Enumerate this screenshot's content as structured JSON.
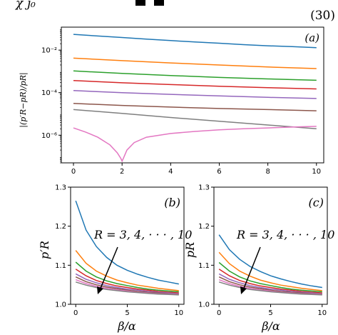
{
  "header": {
    "fragment": "χ ȷ₀",
    "equation_number": "(30)"
  },
  "chart_data": [
    {
      "panel": "(a)",
      "type": "line",
      "ylog": true,
      "xlim": [
        -0.5,
        10.3
      ],
      "ylim": [
        5e-08,
        0.12
      ],
      "xticks": [
        0,
        2,
        4,
        6,
        8,
        10
      ],
      "yticks": [
        {
          "value": 0.01,
          "label": "10⁻²"
        },
        {
          "value": 0.0001,
          "label": "10⁻⁴"
        },
        {
          "value": 1e-06,
          "label": "10⁻⁶"
        }
      ],
      "ylabel": "|(p′R−pR)/pR|",
      "series": [
        {
          "color": "#1f77b4",
          "x": [
            0,
            1,
            2,
            3,
            4,
            5,
            6,
            7,
            8,
            9,
            10
          ],
          "y": [
            0.055,
            0.046,
            0.039,
            0.033,
            0.028,
            0.024,
            0.021,
            0.018,
            0.016,
            0.0145,
            0.013
          ]
        },
        {
          "color": "#ff7f0e",
          "x": [
            0,
            2,
            4,
            6,
            8,
            10
          ],
          "y": [
            0.0042,
            0.0032,
            0.0025,
            0.002,
            0.0016,
            0.00135
          ]
        },
        {
          "color": "#2ca02c",
          "x": [
            0,
            2,
            4,
            6,
            8,
            10
          ],
          "y": [
            0.00105,
            0.0008,
            0.00064,
            0.00052,
            0.00044,
            0.00038
          ]
        },
        {
          "color": "#d62728",
          "x": [
            0,
            2,
            4,
            6,
            8,
            10
          ],
          "y": [
            0.00037,
            0.00029,
            0.00024,
            0.0002,
            0.000172,
            0.00015
          ]
        },
        {
          "color": "#9467bd",
          "x": [
            0,
            2,
            4,
            6,
            8,
            10
          ],
          "y": [
            0.000125,
            0.0001,
            8.3e-05,
            7e-05,
            6e-05,
            5.3e-05
          ]
        },
        {
          "color": "#8c564b",
          "x": [
            0,
            2,
            4,
            6,
            8,
            10
          ],
          "y": [
            3.1e-05,
            2.5e-05,
            2.1e-05,
            1.8e-05,
            1.6e-05,
            1.4e-05
          ]
        },
        {
          "color": "#7f7f7f",
          "x": [
            0,
            2,
            4,
            6,
            8,
            10
          ],
          "y": [
            1.6e-05,
            1.05e-05,
            6.8e-06,
            4.5e-06,
            3e-06,
            2e-06
          ]
        },
        {
          "color": "#e377c2",
          "x": [
            0,
            0.5,
            1,
            1.5,
            1.8,
            1.95,
            2.0,
            2.05,
            2.2,
            2.5,
            3,
            4,
            5,
            6,
            7,
            8,
            9,
            10
          ],
          "y": [
            2.2e-06,
            1.4e-06,
            8e-07,
            3.5e-07,
            1.5e-07,
            8e-08,
            6e-08,
            8e-08,
            2e-07,
            4.5e-07,
            8e-07,
            1.2e-06,
            1.5e-06,
            1.8e-06,
            2e-06,
            2.2e-06,
            2.4e-06,
            2.6e-06
          ]
        }
      ]
    },
    {
      "panel": "(b)",
      "type": "line",
      "xlim": [
        -0.5,
        10.5
      ],
      "ylim": [
        1.0,
        1.3
      ],
      "xticks": [
        0,
        5,
        10
      ],
      "yticks": [
        1.0,
        1.1,
        1.2,
        1.3
      ],
      "xlabel": "β/α",
      "ylabel": "p′R",
      "annotation": "R = 3, 4, · · · , 10",
      "series": [
        {
          "color": "#1f77b4",
          "x": [
            0,
            1,
            2,
            3,
            4,
            5,
            6,
            7,
            8,
            9,
            10
          ],
          "y": [
            1.265,
            1.19,
            1.148,
            1.12,
            1.1,
            1.087,
            1.077,
            1.069,
            1.062,
            1.057,
            1.052
          ]
        },
        {
          "color": "#ff7f0e",
          "x": [
            0,
            1,
            2,
            3,
            4,
            5,
            6,
            7,
            8,
            9,
            10
          ],
          "y": [
            1.138,
            1.105,
            1.085,
            1.072,
            1.062,
            1.055,
            1.049,
            1.045,
            1.041,
            1.038,
            1.035
          ]
        },
        {
          "color": "#2ca02c",
          "x": [
            0,
            1,
            2,
            3,
            4,
            5,
            6,
            7,
            8,
            9,
            10
          ],
          "y": [
            1.108,
            1.085,
            1.07,
            1.06,
            1.053,
            1.048,
            1.043,
            1.039,
            1.036,
            1.034,
            1.032
          ]
        },
        {
          "color": "#d62728",
          "x": [
            0,
            1,
            2,
            3,
            4,
            5,
            6,
            7,
            8,
            9,
            10
          ],
          "y": [
            1.09,
            1.073,
            1.061,
            1.053,
            1.047,
            1.043,
            1.039,
            1.036,
            1.033,
            1.031,
            1.029
          ]
        },
        {
          "color": "#9467bd",
          "x": [
            0,
            1,
            2,
            3,
            4,
            5,
            6,
            7,
            8,
            9,
            10
          ],
          "y": [
            1.078,
            1.064,
            1.055,
            1.048,
            1.043,
            1.039,
            1.036,
            1.033,
            1.031,
            1.029,
            1.027
          ]
        },
        {
          "color": "#8c564b",
          "x": [
            0,
            1,
            2,
            3,
            4,
            5,
            6,
            7,
            8,
            9,
            10
          ],
          "y": [
            1.07,
            1.058,
            1.05,
            1.044,
            1.04,
            1.036,
            1.033,
            1.031,
            1.029,
            1.027,
            1.026
          ]
        },
        {
          "color": "#e377c2",
          "x": [
            0,
            1,
            2,
            3,
            4,
            5,
            6,
            7,
            8,
            9,
            10
          ],
          "y": [
            1.063,
            1.053,
            1.046,
            1.041,
            1.037,
            1.034,
            1.031,
            1.029,
            1.027,
            1.026,
            1.025
          ]
        },
        {
          "color": "#7f7f7f",
          "x": [
            0,
            1,
            2,
            3,
            4,
            5,
            6,
            7,
            8,
            9,
            10
          ],
          "y": [
            1.057,
            1.049,
            1.043,
            1.038,
            1.035,
            1.032,
            1.03,
            1.028,
            1.026,
            1.025,
            1.024
          ]
        }
      ]
    },
    {
      "panel": "(c)",
      "type": "line",
      "xlim": [
        -0.5,
        10.5
      ],
      "ylim": [
        1.0,
        1.3
      ],
      "xticks": [
        0,
        5,
        10
      ],
      "yticks": [
        1.0,
        1.1,
        1.2,
        1.3
      ],
      "xlabel": "β/α",
      "ylabel": "pR",
      "annotation": "R = 3, 4, · · · , 10",
      "series": [
        {
          "color": "#1f77b4",
          "x": [
            0,
            1,
            2,
            3,
            4,
            5,
            6,
            7,
            8,
            9,
            10
          ],
          "y": [
            1.178,
            1.14,
            1.115,
            1.097,
            1.084,
            1.073,
            1.065,
            1.058,
            1.052,
            1.047,
            1.043
          ]
        },
        {
          "color": "#ff7f0e",
          "x": [
            0,
            1,
            2,
            3,
            4,
            5,
            6,
            7,
            8,
            9,
            10
          ],
          "y": [
            1.133,
            1.104,
            1.085,
            1.072,
            1.062,
            1.055,
            1.049,
            1.045,
            1.041,
            1.038,
            1.035
          ]
        },
        {
          "color": "#2ca02c",
          "x": [
            0,
            1,
            2,
            3,
            4,
            5,
            6,
            7,
            8,
            9,
            10
          ],
          "y": [
            1.107,
            1.085,
            1.07,
            1.06,
            1.053,
            1.048,
            1.043,
            1.039,
            1.036,
            1.034,
            1.032
          ]
        },
        {
          "color": "#d62728",
          "x": [
            0,
            1,
            2,
            3,
            4,
            5,
            6,
            7,
            8,
            9,
            10
          ],
          "y": [
            1.09,
            1.073,
            1.061,
            1.053,
            1.047,
            1.043,
            1.039,
            1.036,
            1.033,
            1.031,
            1.029
          ]
        },
        {
          "color": "#9467bd",
          "x": [
            0,
            1,
            2,
            3,
            4,
            5,
            6,
            7,
            8,
            9,
            10
          ],
          "y": [
            1.078,
            1.064,
            1.055,
            1.048,
            1.043,
            1.039,
            1.036,
            1.033,
            1.031,
            1.029,
            1.027
          ]
        },
        {
          "color": "#8c564b",
          "x": [
            0,
            1,
            2,
            3,
            4,
            5,
            6,
            7,
            8,
            9,
            10
          ],
          "y": [
            1.07,
            1.058,
            1.05,
            1.044,
            1.04,
            1.036,
            1.033,
            1.031,
            1.029,
            1.027,
            1.026
          ]
        },
        {
          "color": "#e377c2",
          "x": [
            0,
            1,
            2,
            3,
            4,
            5,
            6,
            7,
            8,
            9,
            10
          ],
          "y": [
            1.063,
            1.053,
            1.046,
            1.041,
            1.037,
            1.034,
            1.031,
            1.029,
            1.027,
            1.026,
            1.025
          ]
        },
        {
          "color": "#7f7f7f",
          "x": [
            0,
            1,
            2,
            3,
            4,
            5,
            6,
            7,
            8,
            9,
            10
          ],
          "y": [
            1.057,
            1.049,
            1.043,
            1.038,
            1.035,
            1.032,
            1.03,
            1.028,
            1.026,
            1.025,
            1.024
          ]
        }
      ]
    }
  ]
}
